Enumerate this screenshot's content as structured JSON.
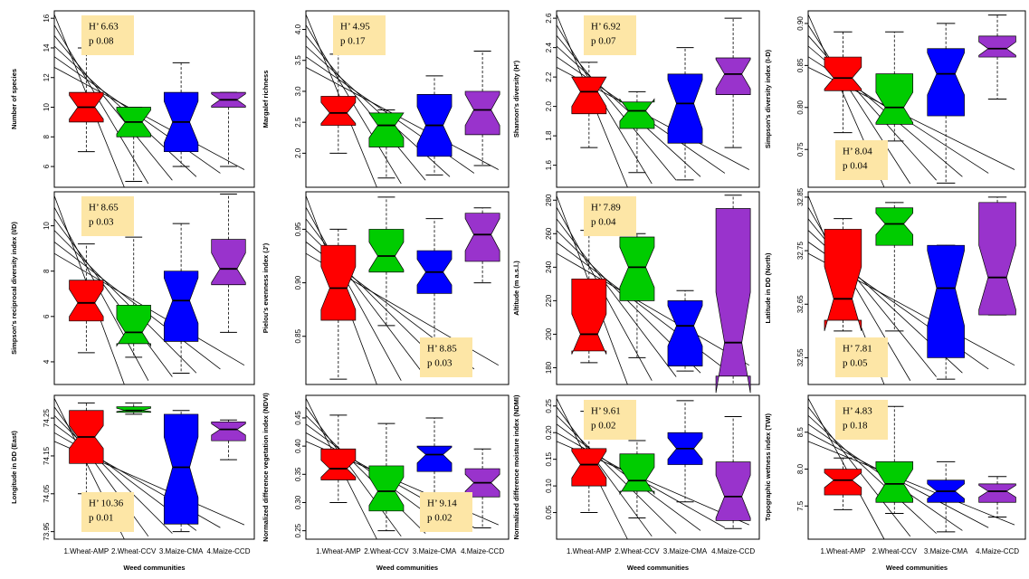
{
  "chart_data": [
    {
      "type": "box",
      "ylabel": "Number of species",
      "ylim": [
        4.6,
        16.5
      ],
      "yticks": [
        6,
        8,
        10,
        12,
        14,
        16
      ],
      "annotation": [
        "H’ 6.63",
        "p  0.08"
      ],
      "annotation_corner": "top-left",
      "boxes": [
        {
          "color": "#ff0000",
          "low": 7,
          "q1": 9,
          "median": 10,
          "q3": 11,
          "high": 14,
          "notch_low": 9.2,
          "notch_high": 10.8
        },
        {
          "color": "#00cc00",
          "low": 5,
          "q1": 8,
          "median": 9,
          "q3": 10,
          "high": 10,
          "notch_low": 8.2,
          "notch_high": 9.8
        },
        {
          "color": "#0000ff",
          "low": 6,
          "q1": 7,
          "median": 9,
          "q3": 11,
          "high": 13,
          "notch_low": 7.6,
          "notch_high": 10.4
        },
        {
          "color": "#9933cc",
          "low": 6,
          "q1": 10,
          "median": 10.5,
          "q3": 11,
          "high": 11,
          "notch_low": 10.1,
          "notch_high": 10.9
        }
      ]
    },
    {
      "type": "box",
      "ylabel": "Margalef richness",
      "ylim": [
        1.45,
        4.3
      ],
      "yticks": [
        {
          "value": 2,
          "label": "2.0"
        },
        2.5,
        {
          "value": 3,
          "label": "3.0"
        },
        3.5,
        {
          "value": 4,
          "label": "4.0"
        }
      ],
      "annotation": [
        "H’ 4.95",
        "p  0.17"
      ],
      "annotation_corner": "top-left",
      "boxes": [
        {
          "color": "#ff0000",
          "low": 2.0,
          "q1": 2.45,
          "median": 2.65,
          "q3": 2.92,
          "high": 3.6,
          "notch_low": 2.48,
          "notch_high": 2.82
        },
        {
          "color": "#00cc00",
          "low": 1.6,
          "q1": 2.1,
          "median": 2.45,
          "q3": 2.65,
          "high": 2.7,
          "notch_low": 2.25,
          "notch_high": 2.65
        },
        {
          "color": "#0000ff",
          "low": 1.65,
          "q1": 1.95,
          "median": 2.45,
          "q3": 2.95,
          "high": 3.25,
          "notch_low": 2.15,
          "notch_high": 2.75
        },
        {
          "color": "#9933cc",
          "low": 1.8,
          "q1": 2.3,
          "median": 2.7,
          "q3": 3.0,
          "high": 3.65,
          "notch_low": 2.45,
          "notch_high": 2.95
        }
      ]
    },
    {
      "type": "box",
      "ylabel": "Shannon's diversity (H')",
      "ylim": [
        1.45,
        2.65
      ],
      "yticks": [
        1.6,
        1.8,
        {
          "value": 2,
          "label": "2.0"
        },
        2.2,
        2.4,
        2.6
      ],
      "annotation": [
        "H’ 6.92",
        "p  0.07"
      ],
      "annotation_corner": "top-left",
      "boxes": [
        {
          "color": "#ff0000",
          "low": 1.72,
          "q1": 1.95,
          "median": 2.1,
          "q3": 2.2,
          "high": 2.3,
          "notch_low": 2.0,
          "notch_high": 2.2
        },
        {
          "color": "#00cc00",
          "low": 1.55,
          "q1": 1.85,
          "median": 1.97,
          "q3": 2.03,
          "high": 2.1,
          "notch_low": 1.9,
          "notch_high": 2.05
        },
        {
          "color": "#0000ff",
          "low": 1.5,
          "q1": 1.75,
          "median": 2.02,
          "q3": 2.22,
          "high": 2.4,
          "notch_low": 1.85,
          "notch_high": 2.18
        },
        {
          "color": "#9933cc",
          "low": 1.72,
          "q1": 2.08,
          "median": 2.22,
          "q3": 2.33,
          "high": 2.6,
          "notch_low": 2.12,
          "notch_high": 2.32
        }
      ]
    },
    {
      "type": "box",
      "ylabel": "Simpson's diversity index (I-D)",
      "ylim": [
        0.705,
        0.915
      ],
      "yticks": [
        0.75,
        {
          "value": 0.8,
          "label": "0.80"
        },
        0.85,
        {
          "value": 0.9,
          "label": "0.90"
        }
      ],
      "annotation": [
        "H’ 8.04",
        "p  0.04"
      ],
      "annotation_corner": "bottom-left",
      "boxes": [
        {
          "color": "#ff0000",
          "low": 0.77,
          "q1": 0.82,
          "median": 0.835,
          "q3": 0.86,
          "high": 0.89,
          "notch_low": 0.822,
          "notch_high": 0.848
        },
        {
          "color": "#00cc00",
          "low": 0.76,
          "q1": 0.78,
          "median": 0.8,
          "q3": 0.84,
          "high": 0.89,
          "notch_low": 0.782,
          "notch_high": 0.818
        },
        {
          "color": "#0000ff",
          "low": 0.71,
          "q1": 0.79,
          "median": 0.84,
          "q3": 0.87,
          "high": 0.9,
          "notch_low": 0.815,
          "notch_high": 0.865
        },
        {
          "color": "#9933cc",
          "low": 0.81,
          "q1": 0.86,
          "median": 0.87,
          "q3": 0.885,
          "high": 0.91,
          "notch_low": 0.862,
          "notch_high": 0.878
        }
      ]
    },
    {
      "type": "box",
      "ylabel": "Simpson's reciprocal diversity index (I/D)",
      "ylim": [
        3,
        11.5
      ],
      "yticks": [
        4,
        6,
        8,
        10
      ],
      "annotation": [
        "H’ 8.65",
        "p  0.03"
      ],
      "annotation_corner": "top-left",
      "boxes": [
        {
          "color": "#ff0000",
          "low": 4.4,
          "q1": 5.8,
          "median": 6.6,
          "q3": 7.6,
          "high": 9.2,
          "notch_low": 6.0,
          "notch_high": 7.2
        },
        {
          "color": "#00cc00",
          "low": 4.2,
          "q1": 4.8,
          "median": 5.3,
          "q3": 6.5,
          "high": 9.5,
          "notch_low": 4.7,
          "notch_high": 5.9
        },
        {
          "color": "#0000ff",
          "low": 3.5,
          "q1": 4.9,
          "median": 6.7,
          "q3": 8.0,
          "high": 10.1,
          "notch_low": 5.7,
          "notch_high": 7.7
        },
        {
          "color": "#9933cc",
          "low": 5.3,
          "q1": 7.4,
          "median": 8.1,
          "q3": 9.4,
          "high": 11.4,
          "notch_low": 7.5,
          "notch_high": 8.8
        }
      ]
    },
    {
      "type": "box",
      "ylabel": "Pielou's evenness index (J')",
      "ylim": [
        0.805,
        0.985
      ],
      "yticks": [
        0.85,
        {
          "value": 0.9,
          "label": "0.90"
        },
        0.95
      ],
      "annotation": [
        "H’ 8.85",
        "p  0.03"
      ],
      "annotation_corner": "bottom-right",
      "boxes": [
        {
          "color": "#ff0000",
          "low": 0.81,
          "q1": 0.865,
          "median": 0.895,
          "q3": 0.935,
          "high": 0.95,
          "notch_low": 0.875,
          "notch_high": 0.915
        },
        {
          "color": "#00cc00",
          "low": 0.86,
          "q1": 0.91,
          "median": 0.925,
          "q3": 0.95,
          "high": 0.98,
          "notch_low": 0.912,
          "notch_high": 0.938
        },
        {
          "color": "#0000ff",
          "low": 0.83,
          "q1": 0.89,
          "median": 0.91,
          "q3": 0.93,
          "high": 0.96,
          "notch_low": 0.898,
          "notch_high": 0.922
        },
        {
          "color": "#9933cc",
          "low": 0.9,
          "q1": 0.92,
          "median": 0.945,
          "q3": 0.965,
          "high": 0.97,
          "notch_low": 0.93,
          "notch_high": 0.96
        }
      ]
    },
    {
      "type": "box",
      "ylabel": "Altitude (m a.s.l.)",
      "ylim": [
        170,
        285
      ],
      "yticks": [
        180,
        200,
        220,
        240,
        260,
        280
      ],
      "annotation": [
        "H’ 7.89",
        "p  0.04"
      ],
      "annotation_corner": "top-left",
      "boxes": [
        {
          "color": "#ff0000",
          "low": 183,
          "q1": 190,
          "median": 200,
          "q3": 233,
          "high": 262,
          "notch_low": 188,
          "notch_high": 212
        },
        {
          "color": "#00cc00",
          "low": 186,
          "q1": 220,
          "median": 240,
          "q3": 258,
          "high": 260,
          "notch_low": 228,
          "notch_high": 252
        },
        {
          "color": "#0000ff",
          "low": 178,
          "q1": 181,
          "median": 205,
          "q3": 220,
          "high": 226,
          "notch_low": 193,
          "notch_high": 217
        },
        {
          "color": "#9933cc",
          "low": 170,
          "q1": 175,
          "median": 195,
          "q3": 275,
          "high": 283,
          "notch_low": 165,
          "notch_high": 225
        }
      ]
    },
    {
      "type": "box",
      "ylabel": "Latitude in DD (North)",
      "ylim": [
        32.5,
        32.86
      ],
      "yticks": [
        32.55,
        32.65,
        32.75,
        32.85
      ],
      "annotation": [
        "H’ 7.81",
        "p  0.05"
      ],
      "annotation_corner": "bottom-left",
      "boxes": [
        {
          "color": "#ff0000",
          "low": 32.6,
          "q1": 32.62,
          "median": 32.66,
          "q3": 32.79,
          "high": 32.81,
          "notch_low": 32.6,
          "notch_high": 32.72
        },
        {
          "color": "#00cc00",
          "low": 32.6,
          "q1": 32.76,
          "median": 32.8,
          "q3": 32.83,
          "high": 32.84,
          "notch_low": 32.78,
          "notch_high": 32.82
        },
        {
          "color": "#0000ff",
          "low": 32.51,
          "q1": 32.55,
          "median": 32.68,
          "q3": 32.76,
          "high": 32.76,
          "notch_low": 32.61,
          "notch_high": 32.75
        },
        {
          "color": "#9933cc",
          "low": 32.63,
          "q1": 32.63,
          "median": 32.7,
          "q3": 32.84,
          "high": 32.85,
          "notch_low": 32.64,
          "notch_high": 32.76
        }
      ]
    },
    {
      "type": "box",
      "ylabel": "Longitude in DD (East)",
      "ylim": [
        73.93,
        74.31
      ],
      "yticks": [
        73.95,
        74.05,
        74.15,
        74.25
      ],
      "annotation": [
        "H’ 10.36",
        "p  0.01"
      ],
      "annotation_corner": "bottom-left",
      "categories": [
        "1.Wheat-AMP",
        "2.Wheat-CCV",
        "3.Maize-CMA",
        "4.Maize-CCD"
      ],
      "xlabel": "Weed communities",
      "boxes": [
        {
          "color": "#ff0000",
          "low": 74.05,
          "q1": 74.13,
          "median": 74.2,
          "q3": 74.27,
          "high": 74.29,
          "notch_low": 74.17,
          "notch_high": 74.23
        },
        {
          "color": "#00cc00",
          "low": 74.26,
          "q1": 74.265,
          "median": 74.27,
          "q3": 74.28,
          "high": 74.29,
          "notch_low": 74.267,
          "notch_high": 74.276
        },
        {
          "color": "#0000ff",
          "low": 73.95,
          "q1": 73.97,
          "median": 74.12,
          "q3": 74.26,
          "high": 74.27,
          "notch_low": 74.04,
          "notch_high": 74.2
        },
        {
          "color": "#9933cc",
          "low": 74.14,
          "q1": 74.19,
          "median": 74.22,
          "q3": 74.24,
          "high": 74.245,
          "notch_low": 74.205,
          "notch_high": 74.235
        }
      ]
    },
    {
      "type": "box",
      "ylabel": "Normalized difference vegetation index (NDVI)",
      "ylim": [
        0.235,
        0.49
      ],
      "yticks": [
        0.25,
        {
          "value": 0.3,
          "label": "0.30"
        },
        0.35,
        {
          "value": 0.4,
          "label": "0.40"
        },
        0.45
      ],
      "annotation": [
        "H’ 9.14",
        "p  0.02"
      ],
      "annotation_corner": "bottom-right",
      "categories": [
        "1.Wheat-AMP",
        "2.Wheat-CCV",
        "3.Maize-CMA",
        "4.Maize-CCD"
      ],
      "xlabel": "Weed communities",
      "boxes": [
        {
          "color": "#ff0000",
          "low": 0.3,
          "q1": 0.34,
          "median": 0.36,
          "q3": 0.395,
          "high": 0.455,
          "notch_low": 0.345,
          "notch_high": 0.375
        },
        {
          "color": "#00cc00",
          "low": 0.25,
          "q1": 0.285,
          "median": 0.32,
          "q3": 0.365,
          "high": 0.44,
          "notch_low": 0.295,
          "notch_high": 0.345
        },
        {
          "color": "#0000ff",
          "low": 0.3,
          "q1": 0.355,
          "median": 0.385,
          "q3": 0.4,
          "high": 0.45,
          "notch_low": 0.37,
          "notch_high": 0.398
        },
        {
          "color": "#9933cc",
          "low": 0.255,
          "q1": 0.31,
          "median": 0.335,
          "q3": 0.36,
          "high": 0.395,
          "notch_low": 0.32,
          "notch_high": 0.35
        }
      ]
    },
    {
      "type": "box",
      "ylabel": "Normalized difference moisture index (NDMI)",
      "ylim": [
        0,
        0.27
      ],
      "yticks": [
        0.05,
        {
          "value": 0.1,
          "label": "0.10"
        },
        0.15,
        {
          "value": 0.2,
          "label": "0.20"
        },
        0.25
      ],
      "annotation": [
        "H’ 9.61",
        "p  0.02"
      ],
      "annotation_corner": "top-left",
      "categories": [
        "1.Wheat-AMP",
        "2.Wheat-CCV",
        "3.Maize-CMA",
        "4.Maize-CCD"
      ],
      "xlabel": "Weed communities",
      "boxes": [
        {
          "color": "#ff0000",
          "low": 0.05,
          "q1": 0.1,
          "median": 0.14,
          "q3": 0.17,
          "high": 0.24,
          "notch_low": 0.115,
          "notch_high": 0.165
        },
        {
          "color": "#00cc00",
          "low": 0.04,
          "q1": 0.09,
          "median": 0.11,
          "q3": 0.16,
          "high": 0.185,
          "notch_low": 0.085,
          "notch_high": 0.135
        },
        {
          "color": "#0000ff",
          "low": 0.07,
          "q1": 0.14,
          "median": 0.17,
          "q3": 0.2,
          "high": 0.26,
          "notch_low": 0.15,
          "notch_high": 0.19
        },
        {
          "color": "#9933cc",
          "low": 0.02,
          "q1": 0.035,
          "median": 0.08,
          "q3": 0.145,
          "high": 0.23,
          "notch_low": 0.04,
          "notch_high": 0.12
        }
      ]
    },
    {
      "type": "box",
      "ylabel": "Topographic wetness index (TWI)",
      "ylim": [
        7.05,
        9.0
      ],
      "yticks": [
        7.5,
        {
          "value": 8,
          "label": "8.0"
        },
        8.5
      ],
      "annotation": [
        "H’ 4.83",
        "p  0.18"
      ],
      "annotation_corner": "top-left",
      "categories": [
        "1.Wheat-AMP",
        "2.Wheat-CCV",
        "3.Maize-CMA",
        "4.Maize-CCD"
      ],
      "xlabel": "Weed communities",
      "boxes": [
        {
          "color": "#ff0000",
          "low": 7.45,
          "q1": 7.65,
          "median": 7.85,
          "q3": 8.0,
          "high": 8.15,
          "notch_low": 7.75,
          "notch_high": 7.95
        },
        {
          "color": "#00cc00",
          "low": 7.4,
          "q1": 7.55,
          "median": 7.8,
          "q3": 8.1,
          "high": 8.85,
          "notch_low": 7.6,
          "notch_high": 8.0
        },
        {
          "color": "#0000ff",
          "low": 7.15,
          "q1": 7.55,
          "median": 7.7,
          "q3": 7.85,
          "high": 8.1,
          "notch_low": 7.6,
          "notch_high": 7.8
        },
        {
          "color": "#9933cc",
          "low": 7.35,
          "q1": 7.55,
          "median": 7.7,
          "q3": 7.8,
          "high": 7.9,
          "notch_low": 7.62,
          "notch_high": 7.78
        }
      ]
    }
  ]
}
